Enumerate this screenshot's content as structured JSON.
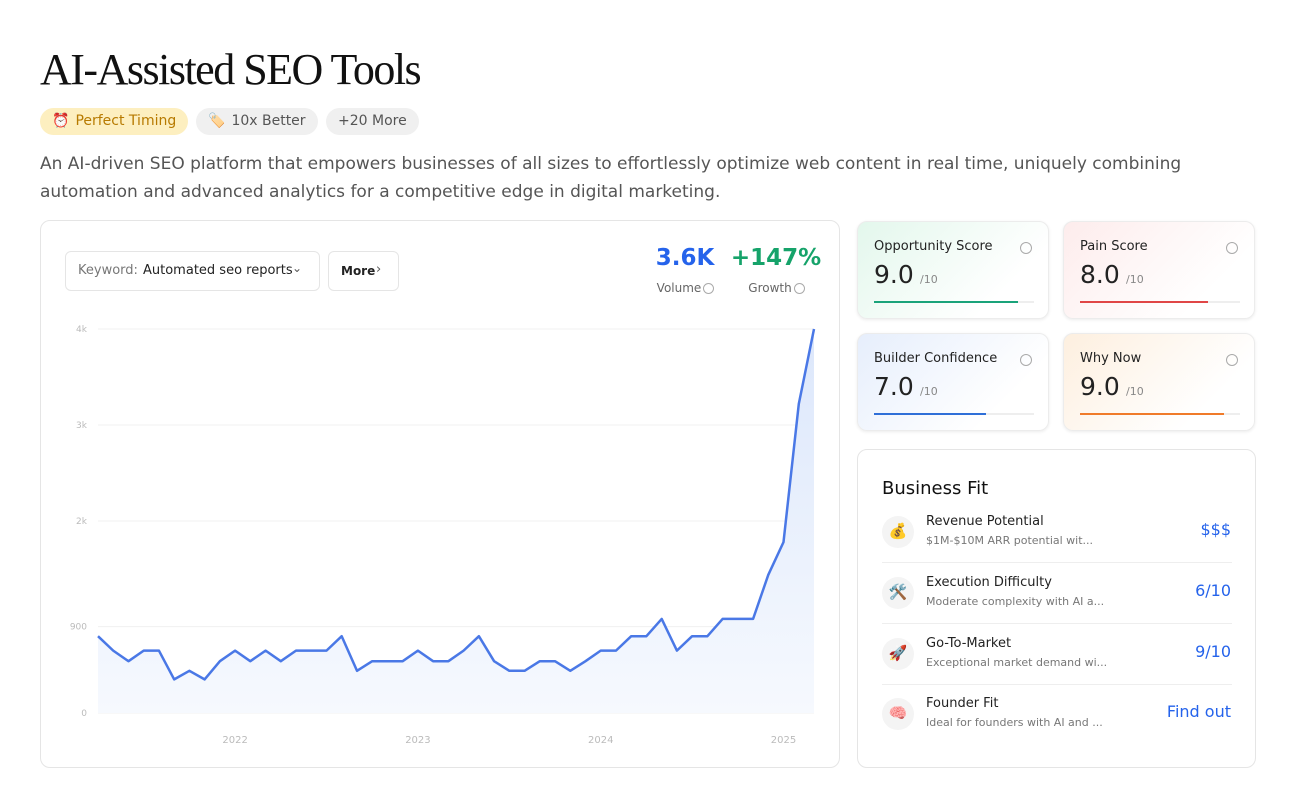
{
  "header": {
    "title": "AI-Assisted SEO Tools",
    "tags": [
      {
        "icon": "⏰",
        "label": "Perfect Timing"
      },
      {
        "icon": "🏷️",
        "label": "10x Better"
      },
      {
        "icon": null,
        "label": "+20 More"
      }
    ],
    "description": "An AI-driven SEO platform that empowers businesses of all sizes to effortlessly optimize web content in real time, uniquely combining automation and advanced analytics for a competitive edge in digital marketing."
  },
  "keyword": {
    "label": "Keyword:",
    "value": "Automated seo reports",
    "more": "More"
  },
  "stats": [
    {
      "value": "3.6K",
      "label": "Volume",
      "color": "#2563eb"
    },
    {
      "value": "+147%",
      "label": "Growth",
      "color": "#16a36a"
    }
  ],
  "chart_data": {
    "type": "line",
    "categories": [
      null,
      null,
      null,
      null,
      null,
      null,
      null,
      null,
      null,
      "2022",
      null,
      null,
      null,
      null,
      null,
      null,
      null,
      null,
      null,
      null,
      null,
      "2023",
      null,
      null,
      null,
      null,
      null,
      null,
      null,
      null,
      null,
      null,
      null,
      "2024",
      null,
      null,
      null,
      null,
      null,
      null,
      null,
      null,
      null,
      null,
      null,
      "2025",
      null,
      null
    ],
    "series": [
      {
        "color": "#4a78e6",
        "values": [
          800,
          650,
          540,
          650,
          650,
          350,
          440,
          350,
          540,
          650,
          540,
          650,
          540,
          650,
          650,
          650,
          800,
          440,
          540,
          540,
          540,
          650,
          540,
          540,
          650,
          800,
          540,
          440,
          440,
          540,
          540,
          440,
          540,
          650,
          650,
          800,
          800,
          980,
          650,
          800,
          800,
          980,
          980,
          980,
          1440,
          1780,
          3220,
          4000
        ]
      }
    ],
    "ylim": [
      0,
      4000
    ],
    "yticks": [
      0,
      900,
      {
        "value": 2000,
        "label": "2k"
      },
      {
        "value": 3000,
        "label": "3k"
      },
      {
        "value": 4000,
        "label": "4k"
      }
    ],
    "grid": true
  },
  "scores": [
    {
      "title": "Opportunity Score",
      "score": 9,
      "score_label": "9.0",
      "max": 10,
      "max_label": "/10",
      "color": "#1aa37a",
      "background": "#e3f7ec"
    },
    {
      "title": "Pain Score",
      "score": 8,
      "score_label": "8.0",
      "max": 10,
      "max_label": "/10",
      "color": "#e04646",
      "background": "#fdecec"
    },
    {
      "title": "Builder Confidence",
      "score": 7,
      "score_label": "7.0",
      "max": 10,
      "max_label": "/10",
      "color": "#2f6fd8",
      "background": "#e6eefc"
    },
    {
      "title": "Why Now",
      "score": 9,
      "score_label": "9.0",
      "max": 10,
      "max_label": "/10",
      "color": "#f07b2a",
      "background": "#fdefdf"
    }
  ],
  "business_fit": {
    "title": "Business Fit",
    "items": [
      {
        "icon": "💰",
        "title": "Revenue Potential",
        "subtitle": "$1M-$10M ARR potential wit...",
        "value": "$$$"
      },
      {
        "icon": "🛠️",
        "title": "Execution Difficulty",
        "subtitle": "Moderate complexity with AI a...",
        "value": "6/10"
      },
      {
        "icon": "🚀",
        "title": "Go-To-Market",
        "subtitle": "Exceptional market demand wi...",
        "value": "9/10"
      },
      {
        "icon": "🧠",
        "title": "Founder Fit",
        "subtitle": "Ideal for founders with AI and ...",
        "value": "Find out"
      }
    ]
  }
}
